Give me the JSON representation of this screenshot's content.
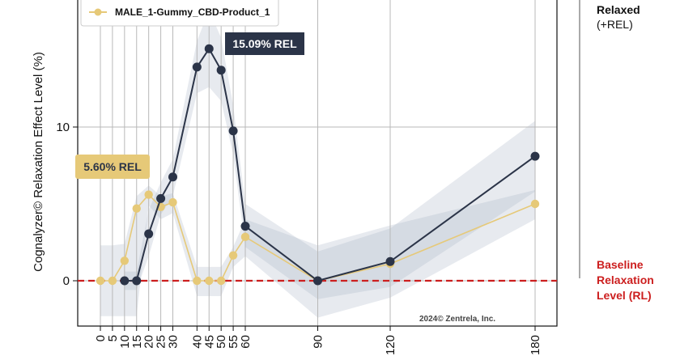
{
  "chart_data": {
    "type": "line",
    "ylabel": "Cognalyzer© Relaxation Effect Level (%)",
    "x": [
      0,
      5,
      10,
      15,
      20,
      25,
      30,
      40,
      45,
      50,
      55,
      60,
      90,
      120,
      180
    ],
    "x_tick_labels": [
      "0",
      "5",
      "10",
      "15",
      "20",
      "25",
      "30",
      "40",
      "45",
      "50",
      "55",
      "60",
      "90",
      "120",
      "180"
    ],
    "y_ticks": [
      0,
      10
    ],
    "ylim": [
      -3.5,
      18
    ],
    "grid": true,
    "legend_placement": "top-left",
    "series": [
      {
        "name": "",
        "color": "#2b3448",
        "values": [
          null,
          null,
          0.0,
          0.0,
          3.05,
          5.35,
          6.75,
          13.9,
          15.09,
          13.7,
          9.75,
          3.55,
          0.0,
          1.25,
          8.1
        ],
        "band_upper": [
          null,
          null,
          0.6,
          0.6,
          4.6,
          6.4,
          7.9,
          15.6,
          17.6,
          15.8,
          11.4,
          5.0,
          1.9,
          3.4,
          10.4
        ],
        "band_lower": [
          null,
          null,
          -0.6,
          -0.6,
          1.6,
          4.3,
          5.5,
          12.2,
          12.6,
          11.7,
          8.2,
          2.2,
          -1.2,
          -0.4,
          5.8
        ]
      },
      {
        "name": "MALE_1-Gummy_CBD-Product_1",
        "color": "#e6c978",
        "values": [
          0.0,
          0.0,
          1.3,
          4.7,
          5.6,
          4.8,
          5.1,
          0.0,
          0.0,
          0.0,
          1.65,
          2.85,
          0.0,
          1.1,
          5.0
        ],
        "band_upper": [
          2.3,
          2.3,
          2.4,
          5.5,
          6.2,
          5.5,
          5.7,
          0.9,
          0.9,
          0.9,
          2.2,
          4.0,
          2.3,
          3.6,
          5.9
        ],
        "band_lower": [
          -2.3,
          -2.3,
          -2.3,
          -2.3,
          4.9,
          4.0,
          4.4,
          -1.0,
          -1.0,
          -1.0,
          0.9,
          1.6,
          -2.4,
          -1.1,
          4.0
        ]
      }
    ],
    "baseline": {
      "value": 0,
      "color": "#cc1f1f"
    },
    "annotations": [
      {
        "text": "15.09% REL",
        "style": "dark"
      },
      {
        "text": "5.60% REL",
        "style": "gold"
      }
    ],
    "side_labels": {
      "top_line1": "Relaxed",
      "top_line2": "(+REL)",
      "bottom_line1": "Baseline",
      "bottom_line2": "Relaxation",
      "bottom_line3": "Level (RL)"
    },
    "credit": "2024© Zentrela, Inc."
  }
}
